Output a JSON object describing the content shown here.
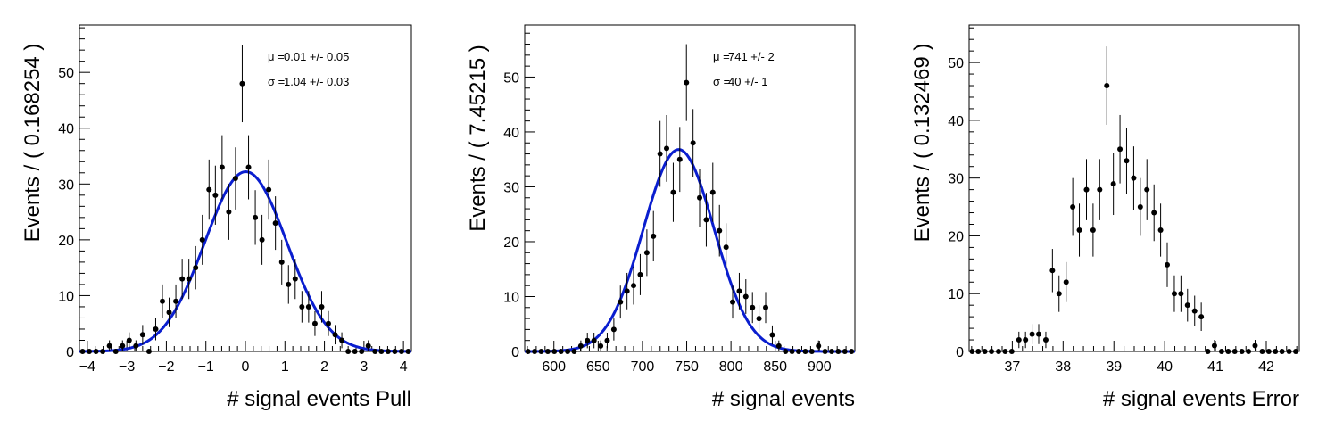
{
  "chart_data": [
    {
      "type": "scatter",
      "xlabel": "# signal events Pull",
      "ylabel": "Events / ( 0.168254 )",
      "xlim": [
        -4.2,
        4.2
      ],
      "ylim": [
        0,
        58.5
      ],
      "xticks": [
        -4,
        -3,
        -2,
        -1,
        0,
        1,
        2,
        3,
        4
      ],
      "xtick_labels": [
        "−4",
        "−3",
        "−2",
        "−1",
        "0",
        "1",
        "2",
        "3",
        "4"
      ],
      "yticks": [
        0,
        10,
        20,
        30,
        40,
        50
      ],
      "yticks_labels": [
        "0",
        "10",
        "20",
        "30",
        "40",
        "50"
      ],
      "annotations": [
        {
          "symbol": "μ =",
          "value": "0.01 +/- 0.05"
        },
        {
          "symbol": "σ =",
          "value": "1.04 +/- 0.03"
        }
      ],
      "fit": {
        "mean": 0.01,
        "sigma": 1.04,
        "amplitude": 32.2
      },
      "x": [
        -4.12,
        -3.95,
        -3.78,
        -3.61,
        -3.44,
        -3.28,
        -3.11,
        -2.94,
        -2.77,
        -2.6,
        -2.44,
        -2.27,
        -2.1,
        -1.93,
        -1.76,
        -1.6,
        -1.43,
        -1.26,
        -1.09,
        -0.92,
        -0.76,
        -0.59,
        -0.42,
        -0.25,
        -0.08,
        0.08,
        0.25,
        0.42,
        0.59,
        0.76,
        0.92,
        1.09,
        1.26,
        1.43,
        1.6,
        1.76,
        1.93,
        2.1,
        2.27,
        2.44,
        2.6,
        2.77,
        2.94,
        3.11,
        3.28,
        3.44,
        3.61,
        3.78,
        3.95,
        4.12
      ],
      "y": [
        0,
        0,
        0,
        0,
        1,
        0,
        1,
        2,
        1,
        3,
        0,
        4,
        9,
        7,
        9,
        13,
        13,
        15,
        20,
        29,
        28,
        33,
        25,
        31,
        48,
        33,
        24,
        20,
        29,
        23,
        16,
        12,
        13,
        8,
        8,
        5,
        8,
        5,
        3,
        2,
        0,
        0,
        0,
        1,
        0,
        0,
        0,
        0,
        0,
        0
      ]
    },
    {
      "type": "scatter",
      "xlabel": "# signal events",
      "ylabel": "Events / ( 7.45215 )",
      "xlim": [
        567,
        940
      ],
      "ylim": [
        0,
        59.5
      ],
      "xticks": [
        600,
        650,
        700,
        750,
        800,
        850,
        900
      ],
      "xtick_labels": [
        "600",
        "650",
        "700",
        "750",
        "800",
        "850",
        "900"
      ],
      "yticks": [
        0,
        10,
        20,
        30,
        40,
        50
      ],
      "yticks_labels": [
        "0",
        "10",
        "20",
        "30",
        "40",
        "50"
      ],
      "annotations": [
        {
          "symbol": "μ =",
          "value": "741 +/- 2"
        },
        {
          "symbol": "σ =",
          "value": "40 +/- 1"
        }
      ],
      "fit": {
        "mean": 741,
        "sigma": 40,
        "amplitude": 36.8
      },
      "x": [
        570.7,
        578.2,
        585.6,
        593.1,
        600.5,
        608.0,
        615.5,
        622.9,
        630.4,
        637.8,
        645.3,
        652.8,
        660.2,
        667.7,
        675.1,
        682.6,
        690.0,
        697.5,
        705.0,
        712.4,
        719.9,
        727.3,
        734.8,
        742.2,
        749.7,
        757.2,
        764.6,
        772.1,
        779.5,
        787.0,
        794.5,
        801.9,
        809.4,
        816.8,
        824.3,
        831.7,
        839.2,
        846.7,
        854.1,
        861.6,
        869.0,
        876.5,
        884.0,
        891.4,
        898.9,
        906.3,
        913.8,
        921.2,
        928.7,
        936.2
      ],
      "y": [
        0,
        0,
        0,
        0,
        0,
        0,
        0,
        0,
        1,
        2,
        2,
        1,
        2,
        4,
        9,
        11,
        12,
        14,
        18,
        21,
        36,
        37,
        29,
        35,
        49,
        38,
        28,
        24,
        29,
        22,
        19,
        9,
        11,
        10,
        8,
        6,
        8,
        3,
        1,
        0,
        0,
        0,
        0,
        0,
        1,
        0,
        0,
        0,
        0,
        0
      ]
    },
    {
      "type": "scatter",
      "xlabel": "# signal events Error",
      "ylabel": "Events / ( 0.132469 )",
      "xlim": [
        36.15,
        42.65
      ],
      "ylim": [
        0,
        56.5
      ],
      "xticks": [
        37,
        38,
        39,
        40,
        41,
        42
      ],
      "xtick_labels": [
        "37",
        "38",
        "39",
        "40",
        "41",
        "42"
      ],
      "yticks": [
        0,
        10,
        20,
        30,
        40,
        50
      ],
      "yticks_labels": [
        "0",
        "10",
        "20",
        "30",
        "40",
        "50"
      ],
      "x": [
        36.21,
        36.33,
        36.46,
        36.59,
        36.73,
        36.86,
        36.99,
        37.13,
        37.26,
        37.39,
        37.52,
        37.66,
        37.79,
        37.92,
        38.06,
        38.19,
        38.32,
        38.46,
        38.59,
        38.72,
        38.86,
        38.99,
        39.12,
        39.25,
        39.39,
        39.52,
        39.65,
        39.79,
        39.92,
        40.05,
        40.19,
        40.32,
        40.45,
        40.59,
        40.72,
        40.85,
        40.98,
        41.12,
        41.25,
        41.38,
        41.52,
        41.65,
        41.78,
        41.92,
        42.05,
        42.18,
        42.31,
        42.45,
        42.58
      ],
      "y": [
        0,
        0,
        0,
        0,
        0,
        0,
        0,
        2,
        2,
        3,
        3,
        2,
        14,
        10,
        12,
        25,
        21,
        28,
        21,
        28,
        46,
        29,
        35,
        33,
        30,
        25,
        28,
        24,
        21,
        15,
        10,
        10,
        8,
        7,
        6,
        0,
        1,
        0,
        0,
        0,
        0,
        0,
        1,
        0,
        0,
        0,
        0,
        0,
        0
      ]
    }
  ]
}
